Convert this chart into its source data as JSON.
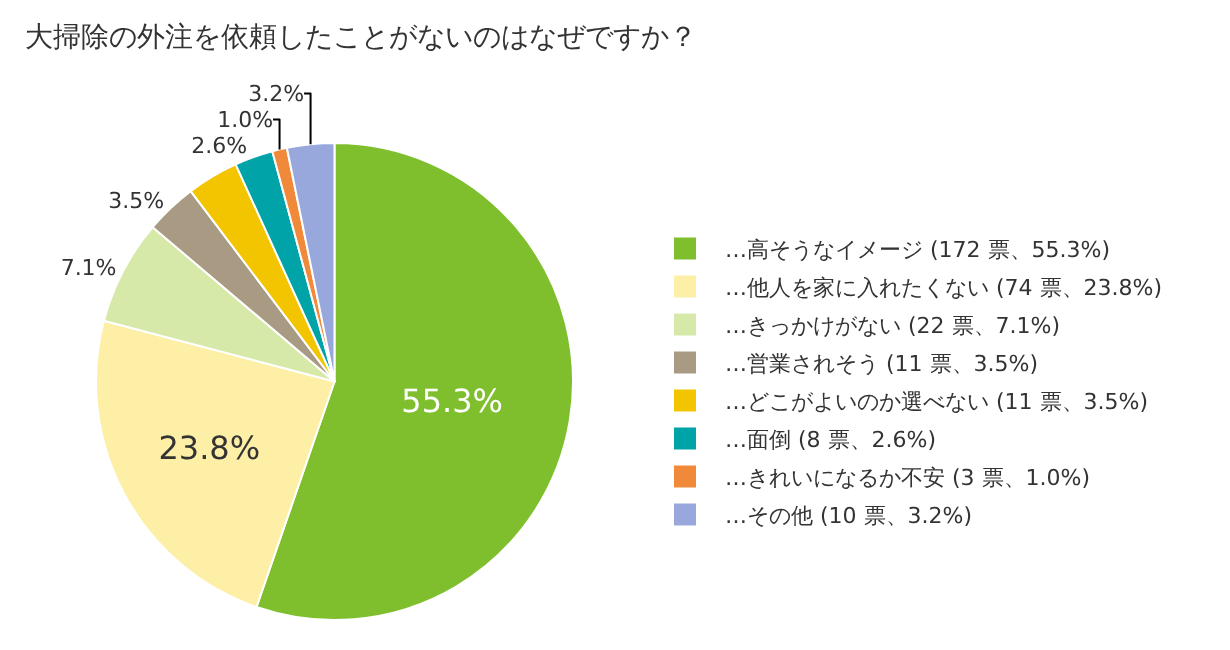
{
  "chart_data": {
    "type": "pie",
    "title": "大掃除の外注を依頼したことがないのはなぜですか？",
    "categories": [
      "…高そうなイメージ (172 票、55.3%)",
      "…他人を家に入れたくない (74 票、23.8%)",
      "…きっかけがない (22 票、7.1%)",
      "…営業されそう (11 票、3.5%)",
      "…どこがよいのか選べない (11 票、3.5%)",
      "…面倒 (8 票、2.6%)",
      "…きれいになるか不安 (3 票、1.0%)",
      "…その他 (10 票、3.2%)"
    ],
    "values": [
      55.3,
      23.8,
      7.1,
      3.5,
      3.5,
      2.6,
      1.0,
      3.2
    ],
    "value_labels": [
      "55.3%",
      "23.8%",
      "7.1%",
      "3.5%",
      null,
      "2.6%",
      "1.0%",
      "3.2%"
    ],
    "colors": [
      "#7fbf2e",
      "#fdefa6",
      "#d6e9a9",
      "#a99a83",
      "#f2c500",
      "#00a3a8",
      "#f08a3a",
      "#98a8dc"
    ],
    "legend": "right"
  }
}
